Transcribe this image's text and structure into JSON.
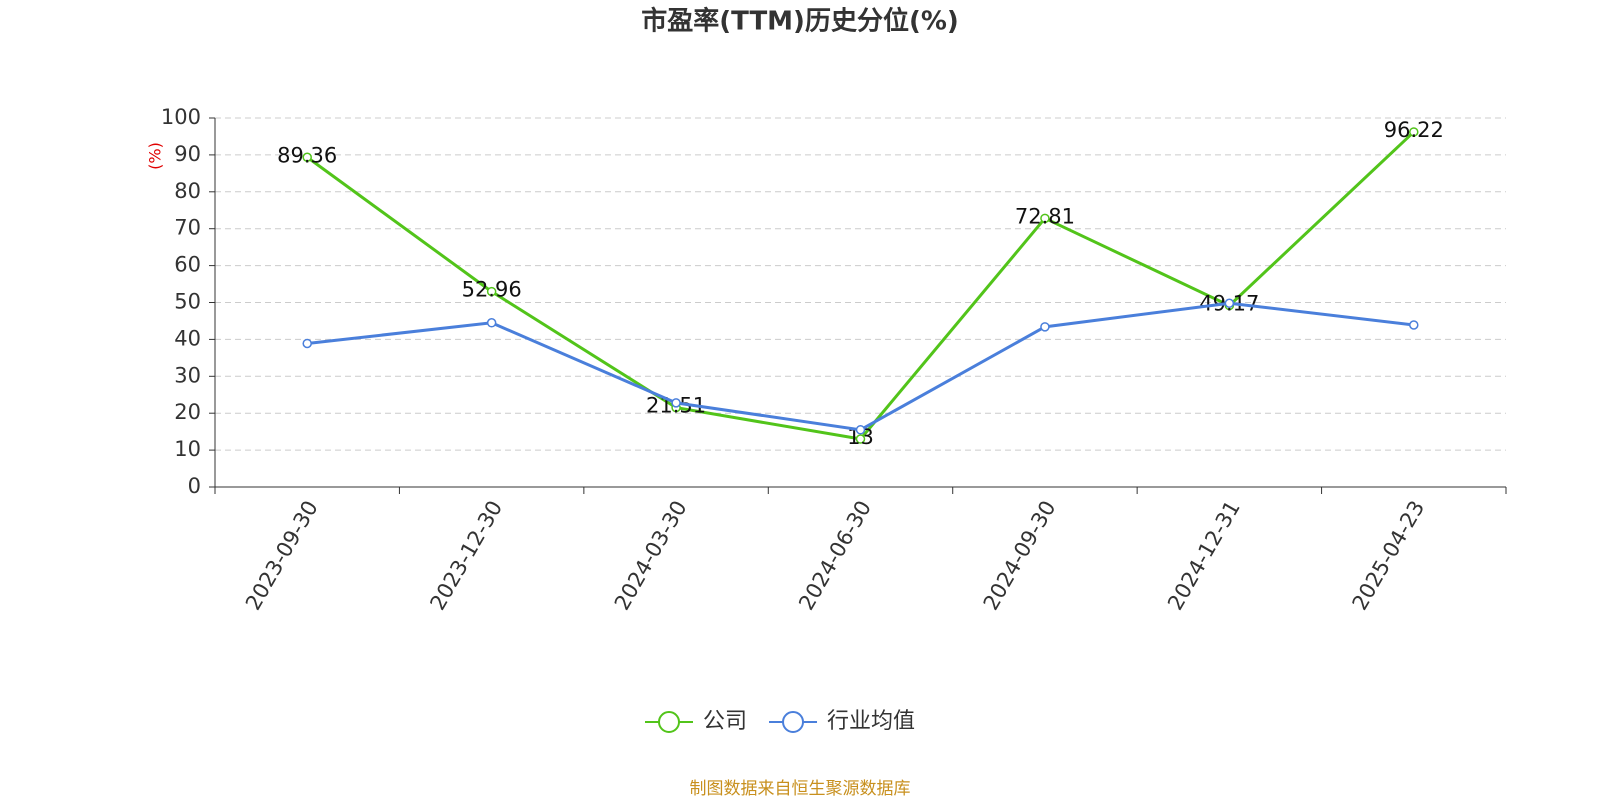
{
  "chart_data": {
    "type": "line",
    "title": "市盈率(TTM)历史分位(%)",
    "y_label": "(%)",
    "categories": [
      "2023-09-30",
      "2023-12-30",
      "2024-03-30",
      "2024-06-30",
      "2024-09-30",
      "2024-12-31",
      "2025-04-23"
    ],
    "series": [
      {
        "name": "公司",
        "color": "#52c41a",
        "values": [
          89.36,
          52.96,
          21.51,
          13,
          72.81,
          49.17,
          96.22
        ],
        "labels": true
      },
      {
        "name": "行业均值",
        "color": "#4a7fdb",
        "values": [
          38.9,
          44.5,
          22.8,
          15.5,
          43.4,
          49.8,
          43.9
        ],
        "labels": false
      }
    ],
    "ylim": [
      0,
      100
    ],
    "yticks": [
      0,
      10,
      20,
      30,
      40,
      50,
      60,
      70,
      80,
      90,
      100
    ],
    "grid": true,
    "source": "制图数据来自恒生聚源数据库"
  }
}
